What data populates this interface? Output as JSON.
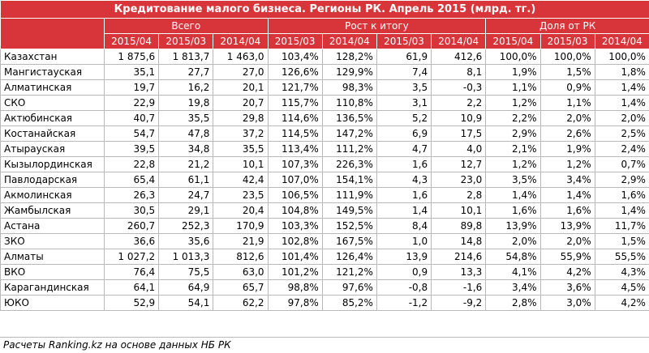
{
  "title": "Кредитование малого бизнеса. Регионы РК. Апрель 2015 (млрд. тг.)",
  "groups": {
    "total": "Всего",
    "growth": "Рост к итогу",
    "share": "Доля от РК"
  },
  "periods": [
    "2015/04",
    "2015/03",
    "2014/04",
    "2015/03",
    "2014/04",
    "2015/03",
    "2014/04",
    "2015/04",
    "2015/03",
    "2014/04"
  ],
  "rows": [
    {
      "name": "Казахстан",
      "v": [
        "1 875,6",
        "1 813,7",
        "1 463,0",
        "103,4%",
        "128,2%",
        "61,9",
        "412,6",
        "100,0%",
        "100,0%",
        "100,0%"
      ]
    },
    {
      "name": "Мангистауская",
      "v": [
        "35,1",
        "27,7",
        "27,0",
        "126,6%",
        "129,9%",
        "7,4",
        "8,1",
        "1,9%",
        "1,5%",
        "1,8%"
      ]
    },
    {
      "name": "Алматинская",
      "v": [
        "19,7",
        "16,2",
        "20,1",
        "121,7%",
        "98,3%",
        "3,5",
        "-0,3",
        "1,1%",
        "0,9%",
        "1,4%"
      ]
    },
    {
      "name": "СКО",
      "v": [
        "22,9",
        "19,8",
        "20,7",
        "115,7%",
        "110,8%",
        "3,1",
        "2,2",
        "1,2%",
        "1,1%",
        "1,4%"
      ]
    },
    {
      "name": "Актюбинская",
      "v": [
        "40,7",
        "35,5",
        "29,8",
        "114,6%",
        "136,5%",
        "5,2",
        "10,9",
        "2,2%",
        "2,0%",
        "2,0%"
      ]
    },
    {
      "name": "Костанайская",
      "v": [
        "54,7",
        "47,8",
        "37,2",
        "114,5%",
        "147,2%",
        "6,9",
        "17,5",
        "2,9%",
        "2,6%",
        "2,5%"
      ]
    },
    {
      "name": "Атырауская",
      "v": [
        "39,5",
        "34,8",
        "35,5",
        "113,4%",
        "111,2%",
        "4,7",
        "4,0",
        "2,1%",
        "1,9%",
        "2,4%"
      ]
    },
    {
      "name": "Кызылординская",
      "v": [
        "22,8",
        "21,2",
        "10,1",
        "107,3%",
        "226,3%",
        "1,6",
        "12,7",
        "1,2%",
        "1,2%",
        "0,7%"
      ]
    },
    {
      "name": "Павлодарская",
      "v": [
        "65,4",
        "61,1",
        "42,4",
        "107,0%",
        "154,1%",
        "4,3",
        "23,0",
        "3,5%",
        "3,4%",
        "2,9%"
      ]
    },
    {
      "name": "Акмолинская",
      "v": [
        "26,3",
        "24,7",
        "23,5",
        "106,5%",
        "111,9%",
        "1,6",
        "2,8",
        "1,4%",
        "1,4%",
        "1,6%"
      ]
    },
    {
      "name": "Жамбылская",
      "v": [
        "30,5",
        "29,1",
        "20,4",
        "104,8%",
        "149,5%",
        "1,4",
        "10,1",
        "1,6%",
        "1,6%",
        "1,4%"
      ]
    },
    {
      "name": "Астана",
      "v": [
        "260,7",
        "252,3",
        "170,9",
        "103,3%",
        "152,5%",
        "8,4",
        "89,8",
        "13,9%",
        "13,9%",
        "11,7%"
      ]
    },
    {
      "name": "ЗКО",
      "v": [
        "36,6",
        "35,6",
        "21,9",
        "102,8%",
        "167,5%",
        "1,0",
        "14,8",
        "2,0%",
        "2,0%",
        "1,5%"
      ]
    },
    {
      "name": "Алматы",
      "v": [
        "1 027,2",
        "1 013,3",
        "812,6",
        "101,4%",
        "126,4%",
        "13,9",
        "214,6",
        "54,8%",
        "55,9%",
        "55,5%"
      ]
    },
    {
      "name": "ВКО",
      "v": [
        "76,4",
        "75,5",
        "63,0",
        "101,2%",
        "121,2%",
        "0,9",
        "13,3",
        "4,1%",
        "4,2%",
        "4,3%"
      ]
    },
    {
      "name": "Карагандинская",
      "v": [
        "64,1",
        "64,9",
        "65,7",
        "98,8%",
        "97,6%",
        "-0,8",
        "-1,6",
        "3,4%",
        "3,6%",
        "4,5%"
      ]
    },
    {
      "name": "ЮКО",
      "v": [
        "52,9",
        "54,1",
        "62,2",
        "97,8%",
        "85,2%",
        "-1,2",
        "-9,2",
        "2,8%",
        "3,0%",
        "4,2%"
      ]
    }
  ],
  "footer": "Расчеты Ranking.kz на основе данных НБ РК",
  "colors": {
    "header_bg": "#d7353a",
    "header_text": "#ffffff",
    "grid": "#b9b9b9"
  }
}
